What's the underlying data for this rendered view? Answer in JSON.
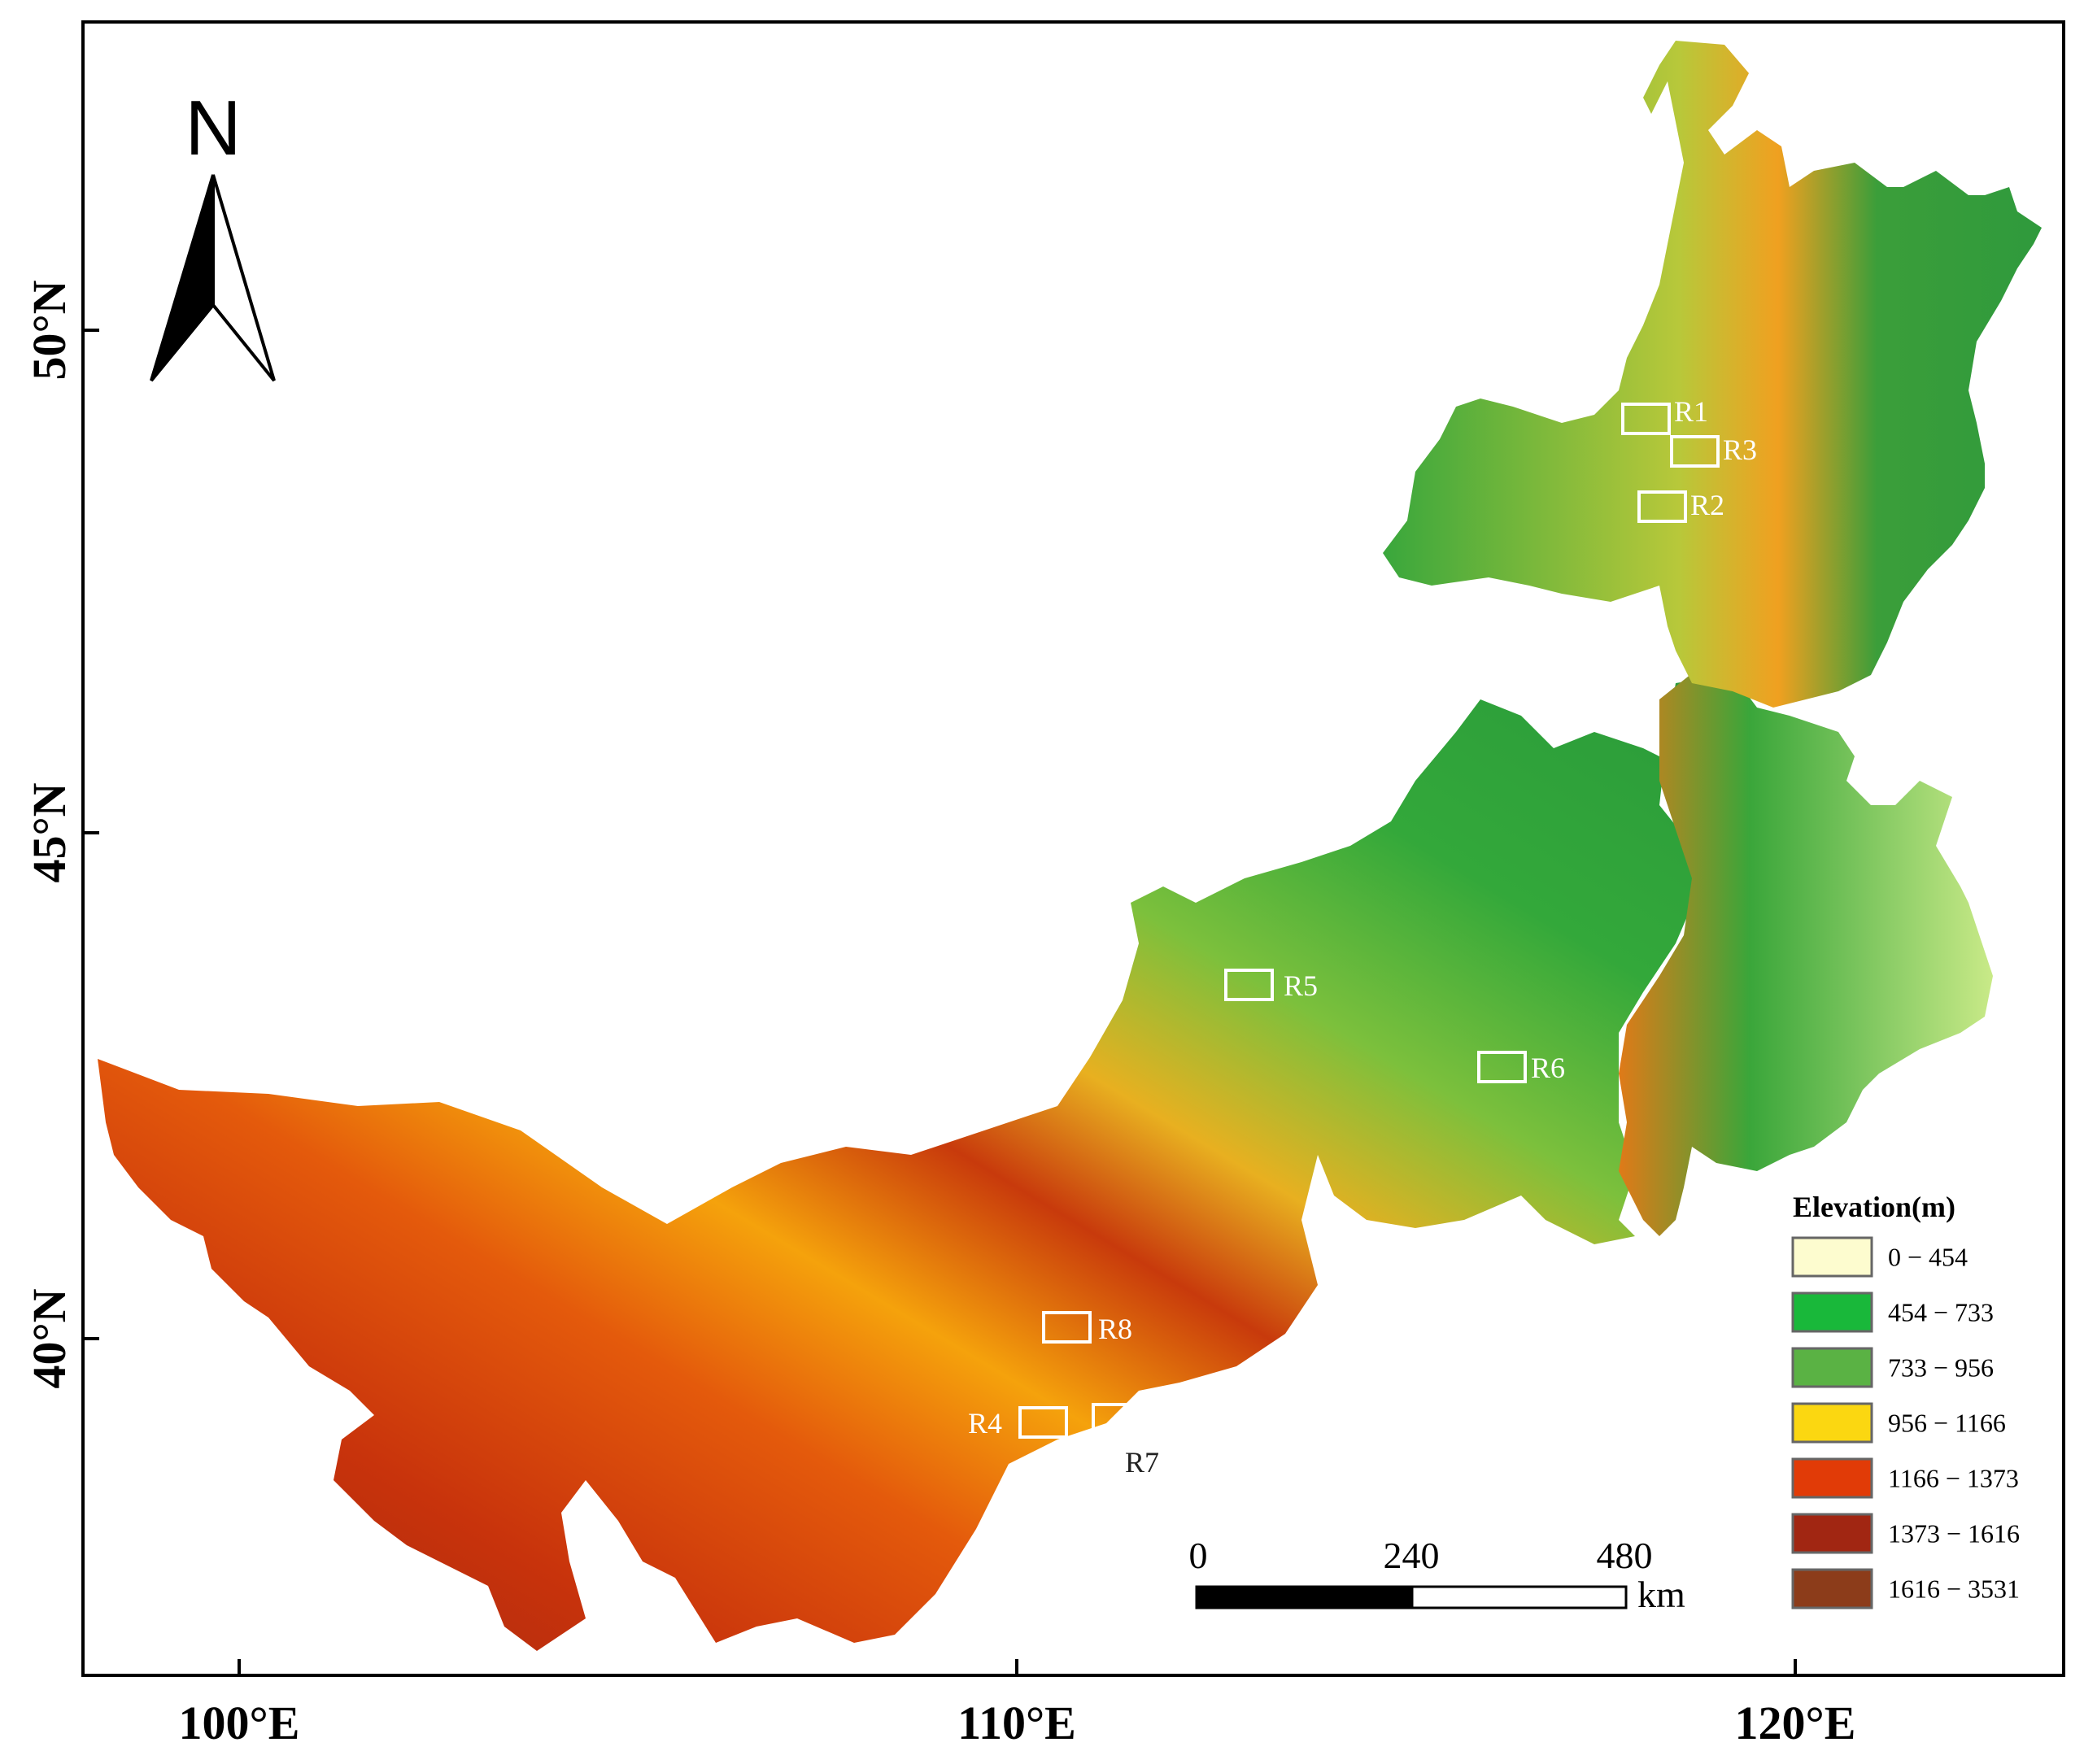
{
  "north_arrow": {
    "label": "N"
  },
  "axes": {
    "longitude_ticks": [
      "100°E",
      "110°E",
      "120°E"
    ],
    "latitude_ticks": [
      "50°N",
      "45°N",
      "40°N"
    ]
  },
  "study_regions": [
    {
      "label": "R1"
    },
    {
      "label": "R3"
    },
    {
      "label": "R2"
    },
    {
      "label": "R5"
    },
    {
      "label": "R6"
    },
    {
      "label": "R8"
    },
    {
      "label": "R4"
    },
    {
      "label": "R7"
    }
  ],
  "legend": {
    "title": "Elevation(m)",
    "classes": [
      {
        "range": "0 − 454",
        "color": "#fdfccf"
      },
      {
        "range": "454 − 733",
        "color": "#19b83a"
      },
      {
        "range": "733 − 956",
        "color": "#5ab244"
      },
      {
        "range": "956 − 1166",
        "color": "#fbd711"
      },
      {
        "range": "1166 − 1373",
        "color": "#e13b07"
      },
      {
        "range": "1373 − 1616",
        "color": "#a12612"
      },
      {
        "range": "1616 − 3531",
        "color": "#8c3c1a"
      }
    ]
  },
  "scale_bar": {
    "ticks": [
      "0",
      "240",
      "480"
    ],
    "unit": "km"
  }
}
